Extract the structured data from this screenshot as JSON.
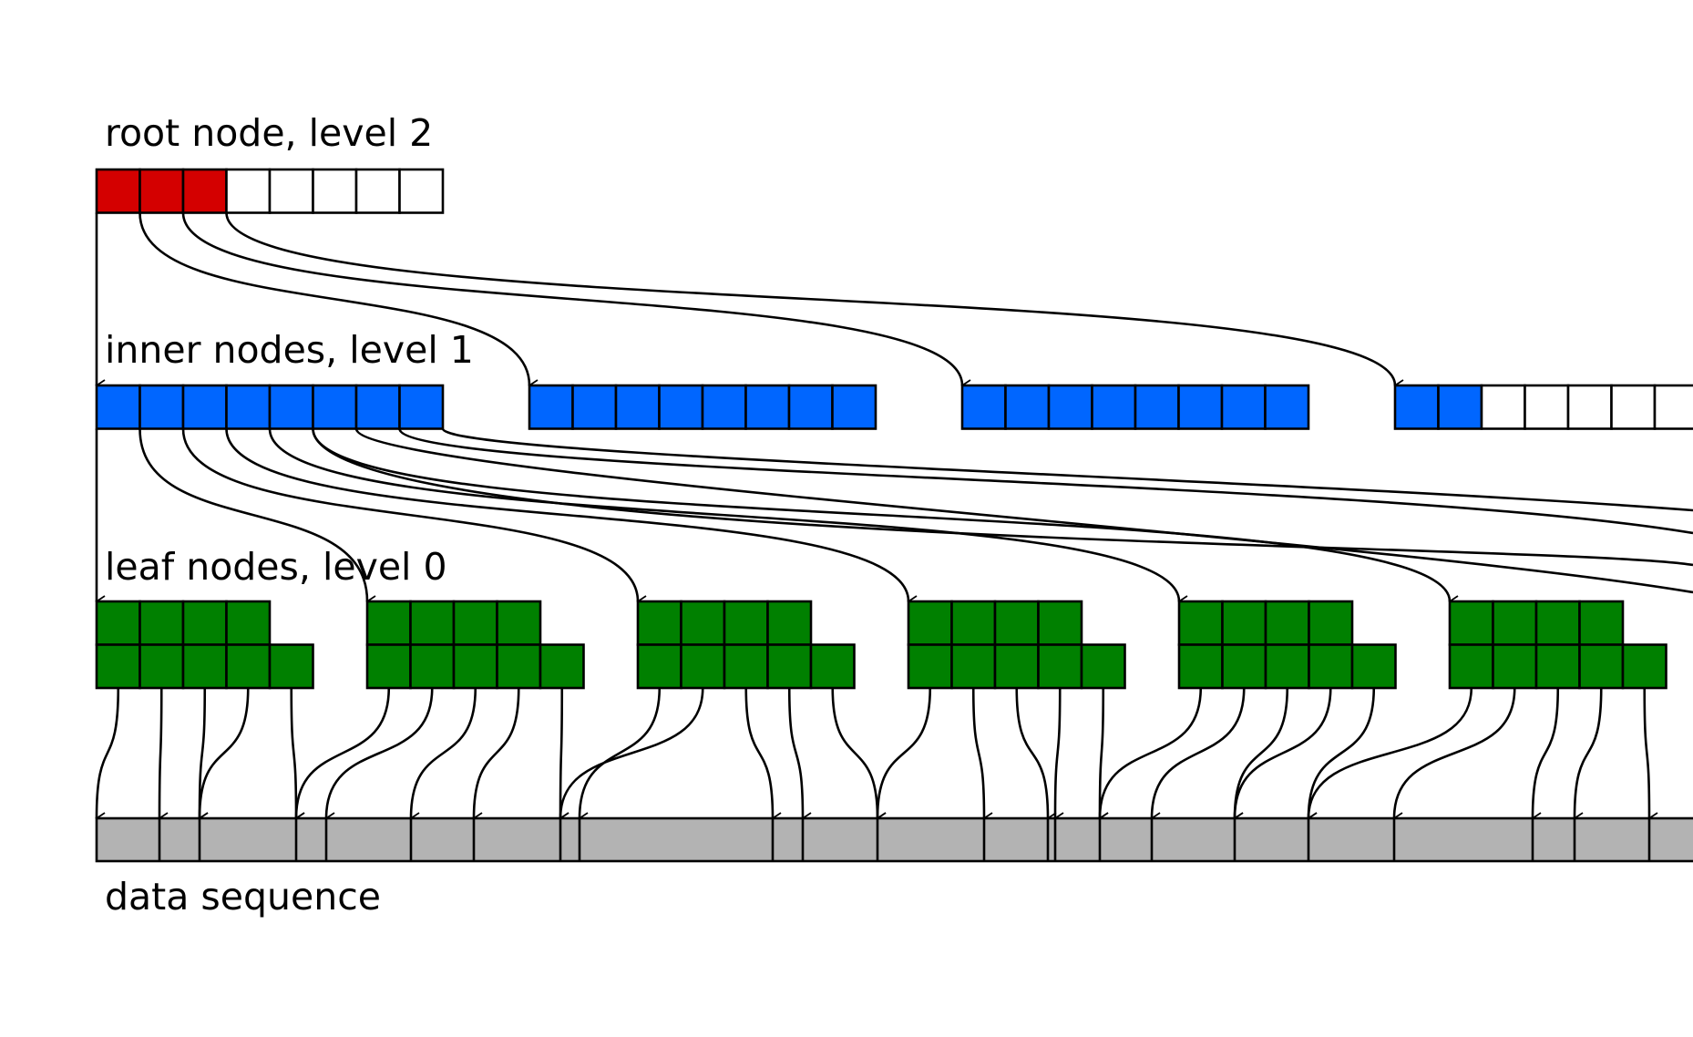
{
  "labels": {
    "root": "root node, level 2",
    "inner": "inner nodes, level 1",
    "leaf": "leaf nodes, level 0",
    "data": "data sequence"
  },
  "colors": {
    "root_filled": "#d40000",
    "inner_filled": "#0066ff",
    "leaf_filled": "#008000",
    "data": "#b3b3b3",
    "empty": "#ffffff",
    "stroke": "#000000"
  },
  "root_node": {
    "slots": 8,
    "filled": 3
  },
  "inner_nodes": [
    {
      "slots": 8,
      "filled": 8
    },
    {
      "slots": 8,
      "filled": 8
    },
    {
      "slots": 8,
      "filled": 8
    },
    {
      "slots": 8,
      "filled": 2
    }
  ],
  "leaf_nodes": {
    "visible_count": 6,
    "top_row_cells": 4,
    "bottom_row_cells": 5
  }
}
